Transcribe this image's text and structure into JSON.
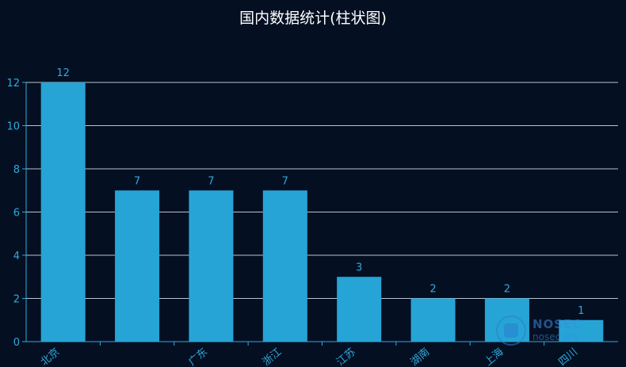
{
  "chart_data": {
    "type": "bar",
    "title": "国内数据统计(柱状图)",
    "categories": [
      "北京",
      "",
      "广东",
      "浙江",
      "江苏",
      "湖南",
      "上海",
      "四川"
    ],
    "values": [
      12,
      7,
      7,
      7,
      3,
      2,
      2,
      1
    ],
    "ylim": [
      0,
      12
    ],
    "yticks": [
      0,
      2,
      4,
      6,
      8,
      10,
      12
    ],
    "xlabel": "",
    "ylabel": "",
    "grid": true,
    "colors": {
      "bar": "#26a4d6",
      "label": "#2eaadc",
      "axis": "#2eaadc",
      "grid": "#b6c3cf",
      "background": "#050f22",
      "title": "#ffffff"
    }
  },
  "watermark": {
    "line1": "NOSEC",
    "line2": "nosec.org"
  }
}
